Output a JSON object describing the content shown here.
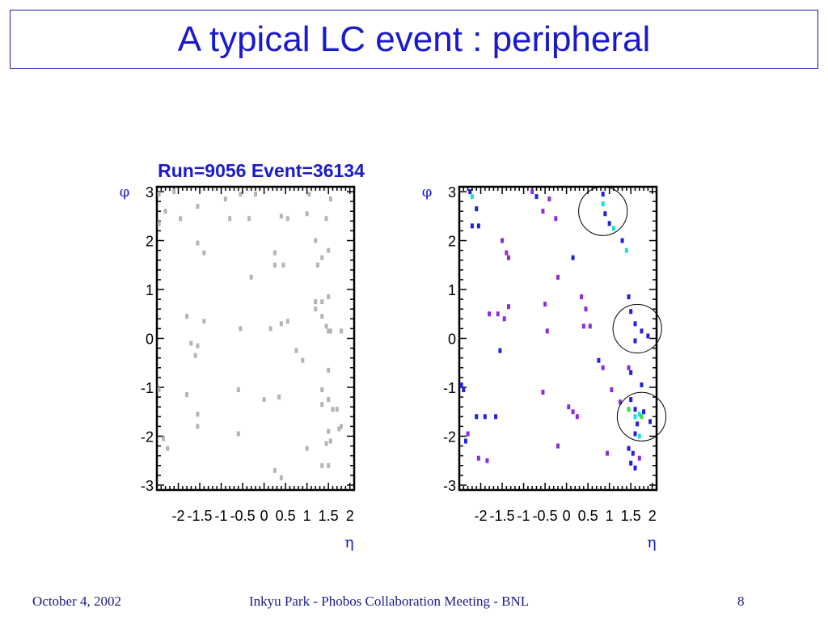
{
  "slide": {
    "title": "A typical LC event : peripheral"
  },
  "footer": {
    "date": "October 4, 2002",
    "center": "Inkyu Park - Phobos Collaboration Meeting - BNL",
    "page": "8"
  },
  "chart_header": "Run=9056 Event=36134",
  "chart_data": [
    {
      "type": "scatter",
      "title": "",
      "xlabel": "η",
      "ylabel": "φ",
      "xlim": [
        -2.5,
        2.1
      ],
      "ylim": [
        -3.1,
        3.1
      ],
      "x_ticks": [
        -2,
        -1.5,
        -1,
        -0.5,
        0,
        0.5,
        1,
        1.5,
        2
      ],
      "x_tick_labels": [
        "-2",
        "-1.5",
        "-1",
        "-0.5",
        "0",
        "0.5",
        "1",
        "1.5",
        "2"
      ],
      "y_ticks": [
        3,
        2,
        1,
        0,
        -1,
        -2,
        -3
      ],
      "y_tick_labels": [
        "3",
        "2",
        "1",
        "0",
        "-1",
        "-2",
        "-3"
      ],
      "grid": false,
      "point_color": "#b4b4b4",
      "points": [
        [
          -2.45,
          2.95
        ],
        [
          -2.1,
          3.0
        ],
        [
          -2.3,
          2.6
        ],
        [
          -1.55,
          2.7
        ],
        [
          -1.95,
          2.45
        ],
        [
          -2.45,
          2.35
        ],
        [
          -0.9,
          2.85
        ],
        [
          -0.55,
          2.95
        ],
        [
          -0.2,
          2.95
        ],
        [
          -0.8,
          2.45
        ],
        [
          -0.35,
          2.45
        ],
        [
          0.4,
          2.5
        ],
        [
          0.55,
          2.45
        ],
        [
          1.05,
          2.95
        ],
        [
          1.55,
          2.85
        ],
        [
          1.0,
          2.55
        ],
        [
          1.45,
          2.45
        ],
        [
          -1.55,
          1.95
        ],
        [
          -1.4,
          1.75
        ],
        [
          0.25,
          1.75
        ],
        [
          0.25,
          1.5
        ],
        [
          0.45,
          1.5
        ],
        [
          1.2,
          2.0
        ],
        [
          1.5,
          1.8
        ],
        [
          1.35,
          1.65
        ],
        [
          1.25,
          1.5
        ],
        [
          -0.3,
          1.25
        ],
        [
          1.5,
          0.85
        ],
        [
          1.35,
          0.75
        ],
        [
          1.2,
          0.75
        ],
        [
          1.2,
          0.6
        ],
        [
          -1.8,
          0.45
        ],
        [
          -1.4,
          0.35
        ],
        [
          1.35,
          0.45
        ],
        [
          0.55,
          0.35
        ],
        [
          0.4,
          0.3
        ],
        [
          -0.55,
          0.2
        ],
        [
          0.15,
          0.2
        ],
        [
          1.45,
          0.25
        ],
        [
          1.5,
          0.15
        ],
        [
          1.55,
          0.15
        ],
        [
          1.8,
          0.15
        ],
        [
          -1.55,
          -0.15
        ],
        [
          -1.7,
          -0.1
        ],
        [
          0.75,
          -0.25
        ],
        [
          -1.6,
          -0.35
        ],
        [
          0.9,
          -0.45
        ],
        [
          1.5,
          -0.65
        ],
        [
          -2.45,
          -1.05
        ],
        [
          -1.8,
          -1.15
        ],
        [
          -0.6,
          -1.05
        ],
        [
          0.0,
          -1.25
        ],
        [
          0.35,
          -1.2
        ],
        [
          1.35,
          -1.05
        ],
        [
          1.5,
          -1.25
        ],
        [
          1.35,
          -1.35
        ],
        [
          1.6,
          -1.45
        ],
        [
          1.7,
          -1.45
        ],
        [
          1.8,
          -1.8
        ],
        [
          1.75,
          -1.85
        ],
        [
          1.5,
          -1.9
        ],
        [
          -1.55,
          -1.55
        ],
        [
          -1.55,
          -1.8
        ],
        [
          -0.6,
          -1.95
        ],
        [
          1.55,
          -2.1
        ],
        [
          1.45,
          -2.15
        ],
        [
          -2.35,
          -2.05
        ],
        [
          -2.25,
          -2.25
        ],
        [
          1.0,
          -2.25
        ],
        [
          1.35,
          -2.6
        ],
        [
          1.5,
          -2.6
        ],
        [
          0.25,
          -2.7
        ],
        [
          0.4,
          -2.85
        ]
      ]
    },
    {
      "type": "scatter",
      "title": "",
      "xlabel": "η",
      "ylabel": "φ",
      "xlim": [
        -2.5,
        2.1
      ],
      "ylim": [
        -3.1,
        3.1
      ],
      "x_ticks": [
        -2,
        -1.5,
        -1,
        -0.5,
        0,
        0.5,
        1,
        1.5,
        2
      ],
      "x_tick_labels": [
        "-2",
        "-1.5",
        "-1",
        "-0.5",
        "0",
        "0.5",
        "1",
        "1.5",
        "2"
      ],
      "y_ticks": [
        3,
        2,
        1,
        0,
        -1,
        -2,
        -3
      ],
      "y_tick_labels": [
        "3",
        "2",
        "1",
        "0",
        "-1",
        "-2",
        "-3"
      ],
      "grid": false,
      "colors": {
        "purple": "#8e2cd9",
        "blue": "#2222dd",
        "cyan": "#22dddd",
        "green": "#33dd44"
      },
      "points": [
        [
          -2.25,
          3.0,
          "blue"
        ],
        [
          -2.2,
          2.9,
          "cyan"
        ],
        [
          -2.1,
          2.65,
          "blue"
        ],
        [
          -2.2,
          2.3,
          "blue"
        ],
        [
          -2.05,
          2.3,
          "blue"
        ],
        [
          -0.8,
          3.0,
          "purple"
        ],
        [
          -0.7,
          2.9,
          "blue"
        ],
        [
          -0.4,
          2.85,
          "purple"
        ],
        [
          -0.55,
          2.6,
          "purple"
        ],
        [
          -0.25,
          2.45,
          "purple"
        ],
        [
          0.85,
          2.95,
          "blue"
        ],
        [
          0.85,
          2.75,
          "cyan"
        ],
        [
          0.9,
          2.55,
          "blue"
        ],
        [
          1.0,
          2.35,
          "blue"
        ],
        [
          1.1,
          2.25,
          "cyan"
        ],
        [
          1.3,
          2.0,
          "blue"
        ],
        [
          1.4,
          1.8,
          "cyan"
        ],
        [
          -1.5,
          2.0,
          "purple"
        ],
        [
          -1.4,
          1.75,
          "purple"
        ],
        [
          -1.35,
          1.65,
          "purple"
        ],
        [
          0.15,
          1.65,
          "blue"
        ],
        [
          -0.2,
          1.25,
          "purple"
        ],
        [
          -1.8,
          0.5,
          "purple"
        ],
        [
          -1.6,
          0.5,
          "purple"
        ],
        [
          -1.45,
          0.4,
          "purple"
        ],
        [
          -1.35,
          0.65,
          "purple"
        ],
        [
          -0.5,
          0.7,
          "purple"
        ],
        [
          0.35,
          0.85,
          "purple"
        ],
        [
          0.45,
          0.6,
          "purple"
        ],
        [
          0.55,
          0.25,
          "purple"
        ],
        [
          0.4,
          0.25,
          "purple"
        ],
        [
          -0.45,
          0.15,
          "purple"
        ],
        [
          1.45,
          0.85,
          "blue"
        ],
        [
          1.5,
          0.55,
          "blue"
        ],
        [
          1.6,
          0.3,
          "blue"
        ],
        [
          1.75,
          0.15,
          "blue"
        ],
        [
          1.9,
          0.05,
          "blue"
        ],
        [
          1.6,
          -0.05,
          "blue"
        ],
        [
          -1.55,
          -0.25,
          "blue"
        ],
        [
          0.75,
          -0.45,
          "blue"
        ],
        [
          0.85,
          -0.6,
          "purple"
        ],
        [
          1.45,
          -0.6,
          "purple"
        ],
        [
          1.5,
          -0.7,
          "blue"
        ],
        [
          1.75,
          -0.95,
          "blue"
        ],
        [
          -2.45,
          -0.95,
          "blue"
        ],
        [
          -2.4,
          -1.05,
          "blue"
        ],
        [
          -0.55,
          -1.1,
          "purple"
        ],
        [
          1.05,
          -1.05,
          "purple"
        ],
        [
          1.25,
          -1.3,
          "purple"
        ],
        [
          1.5,
          -1.25,
          "blue"
        ],
        [
          1.45,
          -1.45,
          "green"
        ],
        [
          1.6,
          -1.45,
          "blue"
        ],
        [
          1.6,
          -1.6,
          "cyan"
        ],
        [
          1.7,
          -1.55,
          "cyan"
        ],
        [
          1.75,
          -1.6,
          "green"
        ],
        [
          1.8,
          -1.5,
          "blue"
        ],
        [
          1.95,
          -1.7,
          "blue"
        ],
        [
          1.65,
          -1.75,
          "blue"
        ],
        [
          1.6,
          -1.95,
          "blue"
        ],
        [
          1.7,
          -2.0,
          "cyan"
        ],
        [
          -2.1,
          -1.6,
          "blue"
        ],
        [
          -1.9,
          -1.6,
          "blue"
        ],
        [
          -1.65,
          -1.6,
          "blue"
        ],
        [
          -2.3,
          -1.95,
          "purple"
        ],
        [
          -2.35,
          -2.1,
          "blue"
        ],
        [
          -2.05,
          -2.45,
          "purple"
        ],
        [
          -1.85,
          -2.5,
          "purple"
        ],
        [
          -0.2,
          -2.2,
          "purple"
        ],
        [
          0.05,
          -1.4,
          "purple"
        ],
        [
          0.15,
          -1.5,
          "purple"
        ],
        [
          0.25,
          -1.6,
          "purple"
        ],
        [
          0.95,
          -2.35,
          "purple"
        ],
        [
          1.45,
          -2.25,
          "blue"
        ],
        [
          1.55,
          -2.35,
          "blue"
        ],
        [
          1.5,
          -2.55,
          "blue"
        ],
        [
          1.6,
          -2.65,
          "blue"
        ],
        [
          1.7,
          -2.45,
          "purple"
        ]
      ],
      "circles": [
        {
          "cx": 0.85,
          "cy": 2.6,
          "r": 0.42
        },
        {
          "cx": 1.65,
          "cy": 0.2,
          "r": 0.42
        },
        {
          "cx": 1.75,
          "cy": -1.6,
          "r": 0.42
        }
      ]
    }
  ]
}
